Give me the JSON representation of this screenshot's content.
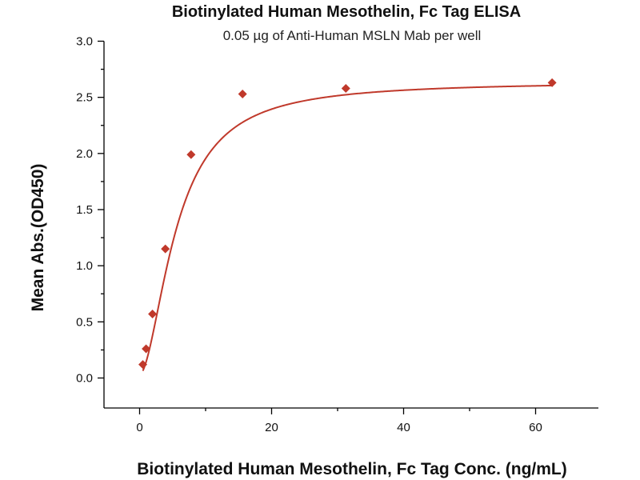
{
  "chart_data": {
    "type": "scatter",
    "title": "Biotinylated Human Mesothelin, Fc Tag ELISA",
    "subtitle": "0.05 µg of Anti-Human MSLN Mab per well",
    "xlabel": "Biotinylated Human Mesothelin, Fc Tag Conc. (ng/mL)",
    "ylabel": "Mean Abs.(OD450)",
    "xlim": [
      -5,
      70
    ],
    "ylim": [
      -0.25,
      3.0
    ],
    "x_ticks": [
      "0",
      "20",
      "40",
      "60"
    ],
    "x_tick_values": [
      0,
      20,
      40,
      60
    ],
    "y_ticks": [
      "0.0",
      "0.5",
      "1.0",
      "1.5",
      "2.0",
      "2.5",
      "3.0"
    ],
    "y_tick_values": [
      0.0,
      0.5,
      1.0,
      1.5,
      2.0,
      2.5,
      3.0
    ],
    "grid": false,
    "series": [
      {
        "x": [
          0.49,
          0.98,
          1.95,
          3.9,
          7.8,
          15.6,
          31.25,
          62.5
        ],
        "y": [
          0.12,
          0.26,
          0.57,
          1.15,
          1.99,
          2.53,
          2.58,
          2.63
        ],
        "fit": "four-parameter logistic curve",
        "color": "#c0392b"
      }
    ]
  }
}
